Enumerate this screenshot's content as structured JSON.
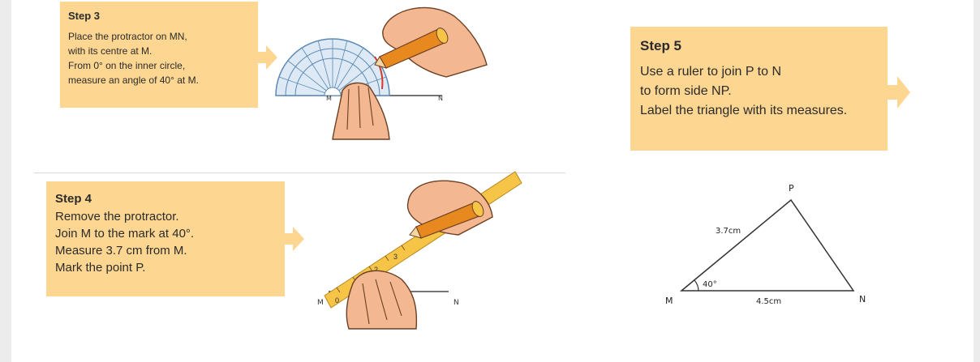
{
  "step3": {
    "title": "Step 3",
    "lines": [
      "Place the protractor on MN,",
      "with its centre at M.",
      "From 0° on the inner circle,",
      "measure an angle of 40° at M."
    ]
  },
  "step4": {
    "title": "Step 4",
    "lines": [
      "Remove the protractor.",
      "Join M to the mark at 40°.",
      "Measure 3.7 cm from M.",
      "Mark the point P."
    ]
  },
  "step5": {
    "title": "Step 5",
    "lines": [
      "Use a ruler to join P to N",
      "to form side NP.",
      "Label the triangle with its measures."
    ]
  },
  "illustration3": {
    "point_m": "M",
    "point_n": "N"
  },
  "illustration4": {
    "point_m": "M",
    "point_n": "N",
    "ruler_numbers": [
      "0",
      "1",
      "2",
      "3"
    ]
  },
  "triangle": {
    "vertex_p": "P",
    "vertex_m": "M",
    "vertex_n": "N",
    "side_mp": "3.7cm",
    "side_mn": "4.5cm",
    "angle_m": "40°"
  },
  "colors": {
    "box": "#fdd691",
    "ruler": "#f6c548",
    "skin": "#f3b891",
    "pencil": "#e8891f",
    "protractor": "#6d9bc3"
  }
}
